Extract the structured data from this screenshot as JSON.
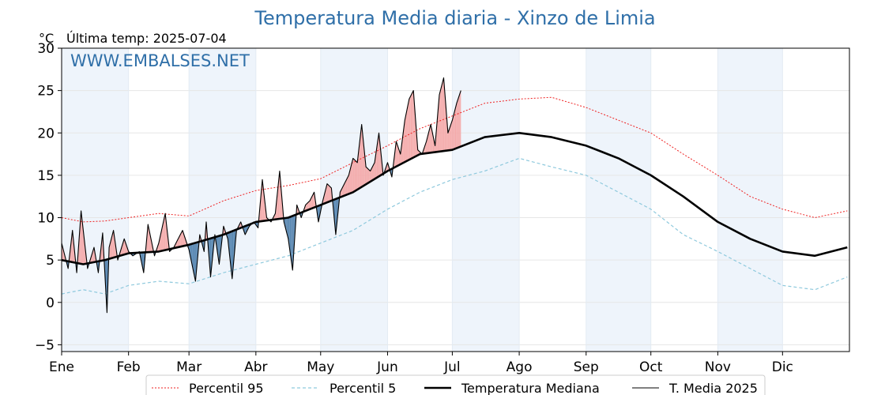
{
  "chart_data": {
    "type": "line",
    "title": "Temperatura Media diaria - Xinzo de Limia",
    "unit": "°C",
    "last_temp_label": "Última temp: 2025-07-04",
    "watermark": "WWW.EMBALSES.NET",
    "ylim": [
      -5.8,
      30
    ],
    "yticks": [
      -5,
      0,
      5,
      10,
      15,
      20,
      25,
      30
    ],
    "ytick_labels": [
      "−5",
      "0",
      "5",
      "10",
      "15",
      "20",
      "25",
      "30"
    ],
    "months": [
      "Ene",
      "Feb",
      "Mar",
      "Abr",
      "May",
      "Jun",
      "Jul",
      "Ago",
      "Sep",
      "Oct",
      "Nov",
      "Dic"
    ],
    "month_start_day": [
      0,
      31,
      59,
      90,
      120,
      151,
      181,
      212,
      243,
      273,
      304,
      334
    ],
    "days_in_year": 365,
    "grid": true,
    "legend": "bottom-center",
    "colors": {
      "title": "#2f6fa8",
      "p95": "#ee2222",
      "p5": "#8ec9dd",
      "median": "#000000",
      "mean2025": "#000000",
      "above_fill": "#f4a8a8",
      "below_fill": "#4f80ad",
      "band": "#eef4fb"
    },
    "series": [
      {
        "name": "Percentil 95",
        "key": "p95",
        "x": [
          0,
          10,
          20,
          31,
          45,
          59,
          75,
          90,
          105,
          120,
          135,
          151,
          166,
          181,
          196,
          212,
          227,
          243,
          258,
          273,
          288,
          304,
          319,
          334,
          349,
          364
        ],
        "values": [
          10.0,
          9.5,
          9.6,
          10.0,
          10.5,
          10.2,
          12.0,
          13.2,
          13.8,
          14.6,
          16.5,
          18.5,
          20.5,
          22.0,
          23.5,
          24.0,
          24.2,
          23.0,
          21.5,
          20.0,
          17.5,
          15.0,
          12.5,
          11.0,
          10.0,
          10.8
        ]
      },
      {
        "name": "Percentil 5",
        "key": "p5",
        "x": [
          0,
          10,
          20,
          31,
          45,
          59,
          75,
          90,
          105,
          120,
          135,
          151,
          166,
          181,
          196,
          212,
          227,
          243,
          258,
          273,
          288,
          304,
          319,
          334,
          349,
          364
        ],
        "values": [
          1.0,
          1.5,
          1.0,
          2.0,
          2.5,
          2.2,
          3.5,
          4.5,
          5.5,
          7.0,
          8.5,
          11.0,
          13.0,
          14.5,
          15.5,
          17.0,
          16.0,
          15.0,
          13.0,
          11.0,
          8.0,
          6.0,
          4.0,
          2.0,
          1.5,
          3.0
        ]
      },
      {
        "name": "Temperatura Mediana",
        "key": "median",
        "x": [
          0,
          10,
          20,
          31,
          45,
          59,
          75,
          90,
          105,
          120,
          135,
          151,
          166,
          181,
          196,
          212,
          227,
          243,
          258,
          273,
          288,
          304,
          319,
          334,
          349,
          364
        ],
        "values": [
          5.0,
          4.5,
          5.0,
          5.8,
          6.0,
          6.8,
          8.0,
          9.5,
          10.0,
          11.5,
          13.0,
          15.5,
          17.5,
          18.0,
          19.5,
          20.0,
          19.5,
          18.5,
          17.0,
          15.0,
          12.5,
          9.5,
          7.5,
          6.0,
          5.5,
          6.5
        ]
      },
      {
        "name": "T. Media 2025",
        "key": "mean2025",
        "x": [
          0,
          3,
          5,
          7,
          9,
          12,
          15,
          17,
          19,
          21,
          22,
          24,
          26,
          29,
          31,
          33,
          36,
          38,
          40,
          43,
          45,
          48,
          50,
          52,
          54,
          56,
          59,
          62,
          64,
          66,
          67,
          69,
          71,
          73,
          75,
          77,
          79,
          81,
          83,
          85,
          87,
          89,
          91,
          93,
          95,
          97,
          99,
          101,
          103,
          105,
          107,
          109,
          111,
          113,
          115,
          117,
          119,
          121,
          123,
          125,
          127,
          129,
          131,
          133,
          135,
          137,
          139,
          141,
          143,
          145,
          147,
          149,
          151,
          153,
          155,
          157,
          159,
          161,
          163,
          165,
          167,
          169,
          171,
          173,
          175,
          177,
          179,
          181,
          183,
          185
        ],
        "values": [
          7.0,
          4.0,
          8.5,
          3.5,
          10.8,
          4.0,
          6.5,
          3.5,
          8.2,
          -1.2,
          6.5,
          8.5,
          5.0,
          7.5,
          6.0,
          5.5,
          6.0,
          3.5,
          9.2,
          5.5,
          7.0,
          10.5,
          6.0,
          6.5,
          7.5,
          8.5,
          6.2,
          2.5,
          8.0,
          6.0,
          9.5,
          3.0,
          8.0,
          4.5,
          9.0,
          7.5,
          2.8,
          8.5,
          9.5,
          8.0,
          9.0,
          9.5,
          8.8,
          14.5,
          10.0,
          9.5,
          10.5,
          15.5,
          9.5,
          7.5,
          3.8,
          11.5,
          10.0,
          11.5,
          12.0,
          13.0,
          9.5,
          12.0,
          14.0,
          13.5,
          8.0,
          13.0,
          14.0,
          15.0,
          17.0,
          16.5,
          21.0,
          16.0,
          15.5,
          16.5,
          20.0,
          15.0,
          16.5,
          14.8,
          19.0,
          17.5,
          21.5,
          24.0,
          25.0,
          18.0,
          17.5,
          19.0,
          21.0,
          18.5,
          24.5,
          26.5,
          20.0,
          21.5,
          23.5,
          25.0
        ]
      }
    ]
  }
}
